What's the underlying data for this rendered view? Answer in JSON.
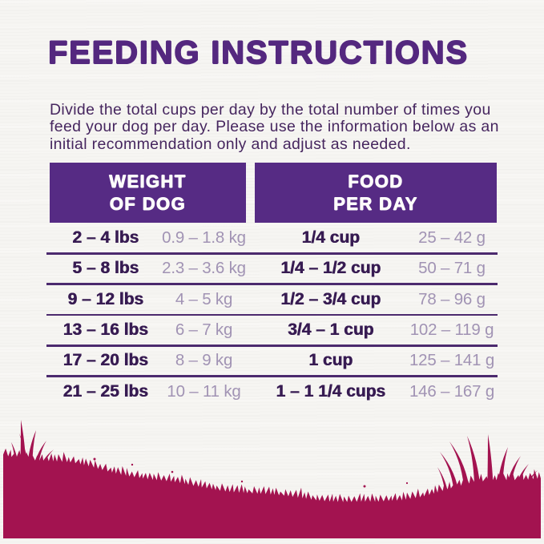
{
  "title": "FEEDING INSTRUCTIONS",
  "intro": {
    "lines": [
      "Divide the total cups per day by the total number of times you",
      "feed your dog per day. Please use the information below as an",
      "initial recommendation only and adjust as needed."
    ]
  },
  "table": {
    "headers": {
      "weight": {
        "line1": "WEIGHT",
        "line2": "OF DOG"
      },
      "food": {
        "line1": "FOOD",
        "line2": "PER DAY"
      }
    },
    "rows": [
      {
        "lbs": "2 – 4 lbs",
        "kg": "0.9 – 1.8 kg",
        "cups": "1/4 cup",
        "grams": "25 – 42 g"
      },
      {
        "lbs": "5 – 8 lbs",
        "kg": "2.3 – 3.6 kg",
        "cups": "1/4 – 1/2 cup",
        "grams": "50 – 71 g"
      },
      {
        "lbs": "9 – 12 lbs",
        "kg": "4 – 5 kg",
        "cups": "1/2 – 3/4 cup",
        "grams": "78 – 96 g"
      },
      {
        "lbs": "13 – 16 lbs",
        "kg": "6 – 7 kg",
        "cups": "3/4 – 1 cup",
        "grams": "102 – 119 g"
      },
      {
        "lbs": "17 – 20 lbs",
        "kg": "8 – 9 kg",
        "cups": "1 cup",
        "grams": "125 – 141 g"
      },
      {
        "lbs": "21 – 25 lbs",
        "kg": "10 – 11 kg",
        "cups": "1 – 1 1/4 cups",
        "grams": "146 – 167 g"
      }
    ]
  },
  "colors": {
    "title": "#54287f",
    "header_bg": "#562b84",
    "header_text": "#fdfcfb",
    "text_dark": "#371b52",
    "text_light": "#a193b4",
    "paragraph": "#46265f",
    "separator": "#4c2a6e",
    "grass": "#a31350",
    "background": "#f6f5f2"
  }
}
